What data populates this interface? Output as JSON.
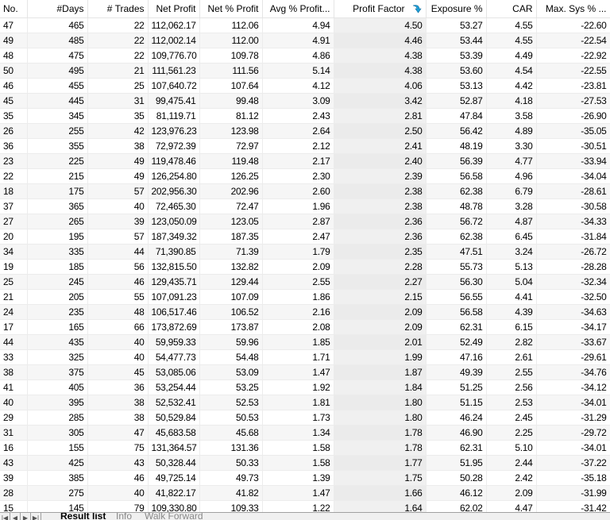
{
  "columns": [
    "No.",
    "#Days",
    "# Trades",
    "Net Profit",
    "Net % Profit",
    "Avg % Profit...",
    "Profit Factor",
    "Exposure %",
    "CAR",
    "Max. Sys % ..."
  ],
  "sorted_column": "Profit Factor",
  "sort_icon": "sort-descending-icon",
  "rows": [
    [
      "47",
      "465",
      "22",
      "112,062.17",
      "112.06",
      "4.94",
      "4.50",
      "53.27",
      "4.55",
      "-22.60"
    ],
    [
      "49",
      "485",
      "22",
      "112,002.14",
      "112.00",
      "4.91",
      "4.46",
      "53.44",
      "4.55",
      "-22.54"
    ],
    [
      "48",
      "475",
      "22",
      "109,776.70",
      "109.78",
      "4.86",
      "4.38",
      "53.39",
      "4.49",
      "-22.92"
    ],
    [
      "50",
      "495",
      "21",
      "111,561.23",
      "111.56",
      "5.14",
      "4.38",
      "53.60",
      "4.54",
      "-22.55"
    ],
    [
      "46",
      "455",
      "25",
      "107,640.72",
      "107.64",
      "4.12",
      "4.06",
      "53.13",
      "4.42",
      "-23.81"
    ],
    [
      "45",
      "445",
      "31",
      "99,475.41",
      "99.48",
      "3.09",
      "3.42",
      "52.87",
      "4.18",
      "-27.53"
    ],
    [
      "35",
      "345",
      "35",
      "81,119.71",
      "81.12",
      "2.43",
      "2.81",
      "47.84",
      "3.58",
      "-26.90"
    ],
    [
      "26",
      "255",
      "42",
      "123,976.23",
      "123.98",
      "2.64",
      "2.50",
      "56.42",
      "4.89",
      "-35.05"
    ],
    [
      "36",
      "355",
      "38",
      "72,972.39",
      "72.97",
      "2.12",
      "2.41",
      "48.19",
      "3.30",
      "-30.51"
    ],
    [
      "23",
      "225",
      "49",
      "119,478.46",
      "119.48",
      "2.17",
      "2.40",
      "56.39",
      "4.77",
      "-33.94"
    ],
    [
      "22",
      "215",
      "49",
      "126,254.80",
      "126.25",
      "2.30",
      "2.39",
      "56.58",
      "4.96",
      "-34.04"
    ],
    [
      "18",
      "175",
      "57",
      "202,956.30",
      "202.96",
      "2.60",
      "2.38",
      "62.38",
      "6.79",
      "-28.61"
    ],
    [
      "37",
      "365",
      "40",
      "72,465.30",
      "72.47",
      "1.96",
      "2.38",
      "48.78",
      "3.28",
      "-30.58"
    ],
    [
      "27",
      "265",
      "39",
      "123,050.09",
      "123.05",
      "2.87",
      "2.36",
      "56.72",
      "4.87",
      "-34.33"
    ],
    [
      "20",
      "195",
      "57",
      "187,349.32",
      "187.35",
      "2.47",
      "2.36",
      "62.38",
      "6.45",
      "-31.84"
    ],
    [
      "34",
      "335",
      "44",
      "71,390.85",
      "71.39",
      "1.79",
      "2.35",
      "47.51",
      "3.24",
      "-26.72"
    ],
    [
      "19",
      "185",
      "56",
      "132,815.50",
      "132.82",
      "2.09",
      "2.28",
      "55.73",
      "5.13",
      "-28.28"
    ],
    [
      "25",
      "245",
      "46",
      "129,435.71",
      "129.44",
      "2.55",
      "2.27",
      "56.30",
      "5.04",
      "-32.34"
    ],
    [
      "21",
      "205",
      "55",
      "107,091.23",
      "107.09",
      "1.86",
      "2.15",
      "56.55",
      "4.41",
      "-32.50"
    ],
    [
      "24",
      "235",
      "48",
      "106,517.46",
      "106.52",
      "2.16",
      "2.09",
      "56.58",
      "4.39",
      "-34.63"
    ],
    [
      "17",
      "165",
      "66",
      "173,872.69",
      "173.87",
      "2.08",
      "2.09",
      "62.31",
      "6.15",
      "-34.17"
    ],
    [
      "44",
      "435",
      "40",
      "59,959.33",
      "59.96",
      "1.85",
      "2.01",
      "52.49",
      "2.82",
      "-33.67"
    ],
    [
      "33",
      "325",
      "40",
      "54,477.73",
      "54.48",
      "1.71",
      "1.99",
      "47.16",
      "2.61",
      "-29.61"
    ],
    [
      "38",
      "375",
      "45",
      "53,085.06",
      "53.09",
      "1.47",
      "1.87",
      "49.39",
      "2.55",
      "-34.76"
    ],
    [
      "41",
      "405",
      "36",
      "53,254.44",
      "53.25",
      "1.92",
      "1.84",
      "51.25",
      "2.56",
      "-34.12"
    ],
    [
      "40",
      "395",
      "38",
      "52,532.41",
      "52.53",
      "1.81",
      "1.80",
      "51.15",
      "2.53",
      "-34.01"
    ],
    [
      "29",
      "285",
      "38",
      "50,529.84",
      "50.53",
      "1.73",
      "1.80",
      "46.24",
      "2.45",
      "-31.29"
    ],
    [
      "31",
      "305",
      "47",
      "45,683.58",
      "45.68",
      "1.34",
      "1.78",
      "46.90",
      "2.25",
      "-29.72"
    ],
    [
      "16",
      "155",
      "75",
      "131,364.57",
      "131.36",
      "1.58",
      "1.78",
      "62.31",
      "5.10",
      "-34.01"
    ],
    [
      "43",
      "425",
      "43",
      "50,328.44",
      "50.33",
      "1.58",
      "1.77",
      "51.95",
      "2.44",
      "-37.22"
    ],
    [
      "39",
      "385",
      "46",
      "49,725.14",
      "49.73",
      "1.39",
      "1.75",
      "50.28",
      "2.42",
      "-35.18"
    ],
    [
      "28",
      "275",
      "40",
      "41,822.17",
      "41.82",
      "1.47",
      "1.66",
      "46.12",
      "2.09",
      "-31.99"
    ],
    [
      "15",
      "145",
      "79",
      "109,330.80",
      "109.33",
      "1.22",
      "1.64",
      "62.02",
      "4.47",
      "-31.42"
    ]
  ],
  "tabs": [
    {
      "label": "Result list",
      "active": true
    },
    {
      "label": "Info",
      "active": false
    },
    {
      "label": "Walk Forward",
      "active": false
    }
  ],
  "nav_buttons": [
    "first-icon",
    "prev-icon",
    "next-icon",
    "last-icon"
  ],
  "colors": {
    "sort_icon": "#1e9fd8",
    "sorted_column_bg": "#f0f0f0"
  }
}
